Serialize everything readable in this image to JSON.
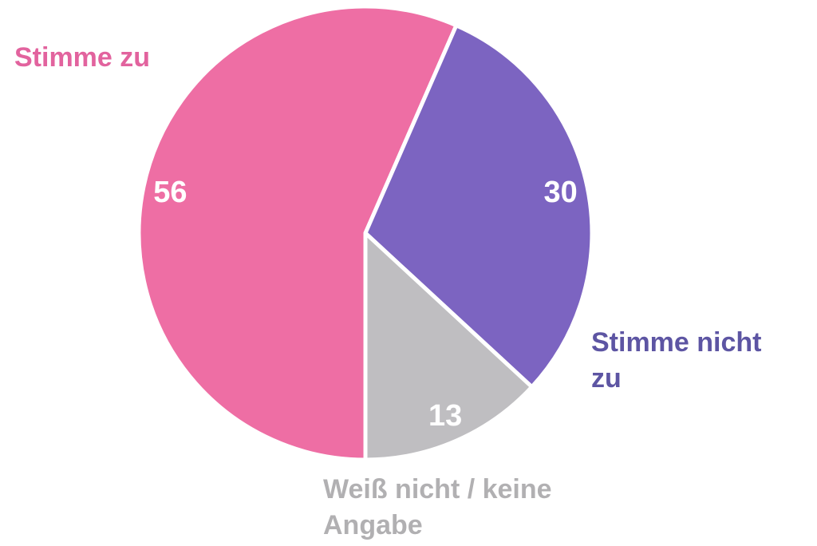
{
  "chart_data": {
    "type": "pie",
    "title": "",
    "labels": [
      "Stimme zu",
      "Stimme nicht zu",
      "Weiß nicht / keine Angabe"
    ],
    "values": [
      56,
      30,
      13
    ],
    "slice_colors": [
      "#ee6ea4",
      "#7c64c1",
      "#bfbec1"
    ],
    "label_colors": [
      "#e2639e",
      "#5d55a3",
      "#b1b0b2"
    ],
    "value_label_color": "#ffffff",
    "slice_border_color": "#ffffff",
    "start_angle_deg": 180,
    "direction": "clockwise",
    "legend_position": "outside-callouts",
    "grid": false,
    "background_color": "#ffffff"
  }
}
